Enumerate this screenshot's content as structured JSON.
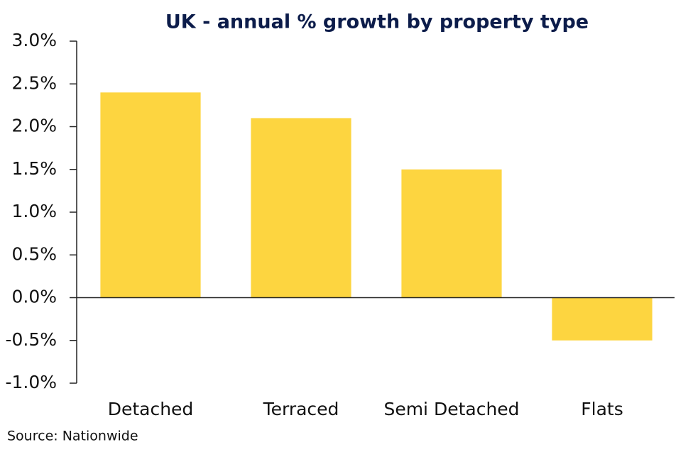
{
  "chart_data": {
    "type": "bar",
    "title": "UK - annual % growth by property type",
    "categories": [
      "Detached",
      "Terraced",
      "Semi Detached",
      "Flats"
    ],
    "values": [
      2.4,
      2.1,
      1.5,
      -0.5
    ],
    "color": "#fdd540",
    "ylim": [
      -1.0,
      3.0
    ],
    "yticks": [
      {
        "value": -1.0,
        "label": "-1.0%"
      },
      {
        "value": -0.5,
        "label": "-0.5%"
      },
      {
        "value": 0,
        "label": "0.0%"
      },
      {
        "value": 0.5,
        "label": "0.5%"
      },
      {
        "value": 1.0,
        "label": "1.0%"
      },
      {
        "value": 1.5,
        "label": "1.5%"
      },
      {
        "value": 2.0,
        "label": "2.0%"
      },
      {
        "value": 2.5,
        "label": "2.5%"
      },
      {
        "value": 3.0,
        "label": "3.0%"
      }
    ],
    "grid": false,
    "source": "Source: Nationwide"
  }
}
